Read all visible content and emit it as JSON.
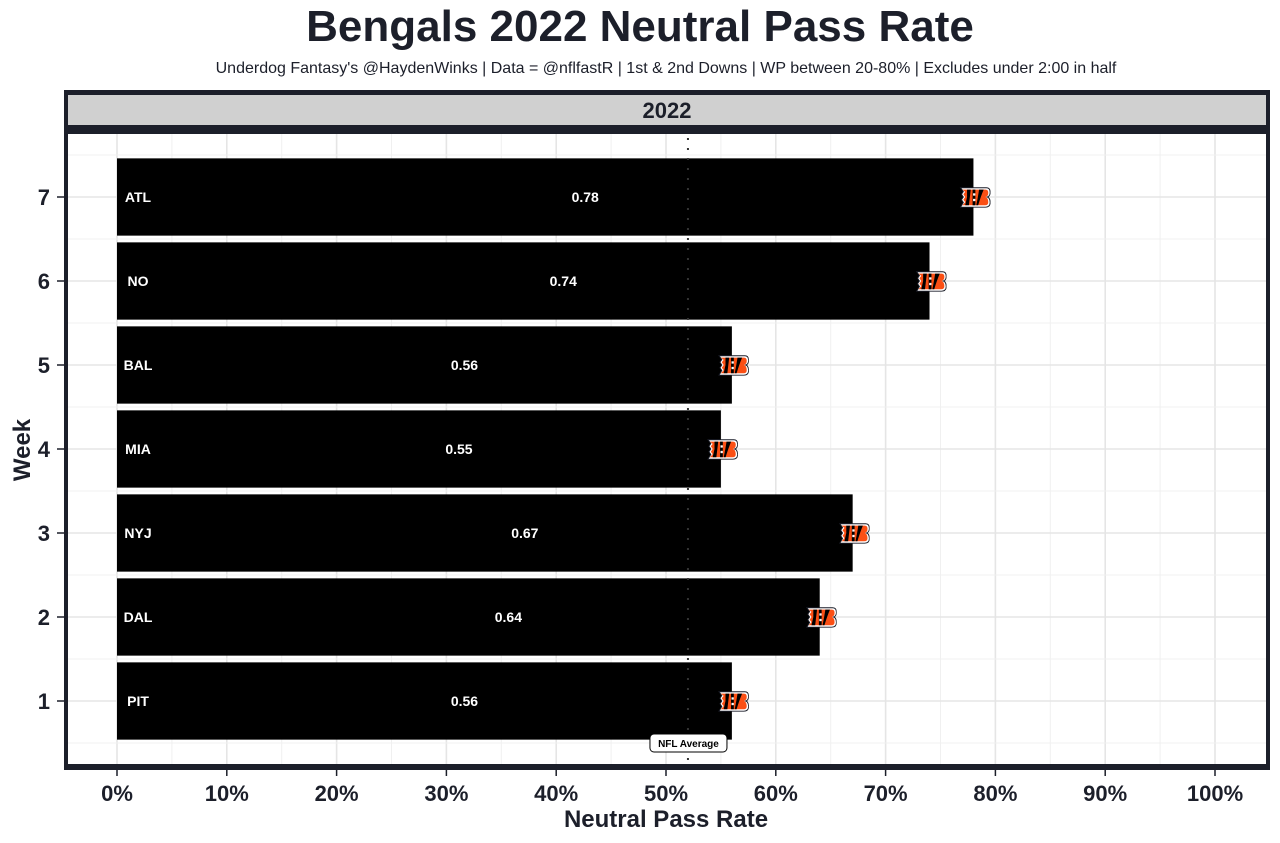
{
  "chart_data": {
    "type": "bar",
    "orientation": "horizontal",
    "title": "Bengals 2022 Neutral Pass Rate",
    "subtitle": "Underdog Fantasy's @HaydenWinks | Data = @nflfastR | 1st & 2nd Downs | WP between 20-80% | Excludes under 2:00 in half",
    "facet_label": "2022",
    "xlabel": "Neutral Pass Rate",
    "ylabel": "Week",
    "xlim": [
      0,
      1
    ],
    "ylim": [
      0.5,
      7.5
    ],
    "x_ticks": [
      0,
      0.1,
      0.2,
      0.3,
      0.4,
      0.5,
      0.6,
      0.7,
      0.8,
      0.9,
      1.0
    ],
    "x_tick_labels": [
      "0%",
      "10%",
      "20%",
      "30%",
      "40%",
      "50%",
      "60%",
      "70%",
      "80%",
      "90%",
      "100%"
    ],
    "y_ticks": [
      1,
      2,
      3,
      4,
      5,
      6,
      7
    ],
    "y_tick_labels": [
      "1",
      "2",
      "3",
      "4",
      "5",
      "6",
      "7"
    ],
    "grid": true,
    "bar_color": "#000000",
    "categories": [
      "1",
      "2",
      "3",
      "4",
      "5",
      "6",
      "7"
    ],
    "opponents": [
      "PIT",
      "DAL",
      "NYJ",
      "MIA",
      "BAL",
      "NO",
      "ATL"
    ],
    "values": [
      0.56,
      0.64,
      0.67,
      0.55,
      0.56,
      0.74,
      0.78
    ],
    "value_labels": [
      "0.56",
      "0.64",
      "0.67",
      "0.55",
      "0.56",
      "0.74",
      "0.78"
    ],
    "reference_line": {
      "value": 0.52,
      "label": "NFL Average",
      "style": "dotted"
    },
    "point_marker": "bengals-logo-icon",
    "logo_colors": {
      "orange": "#fb4f14",
      "black": "#000000",
      "white": "#ffffff"
    }
  },
  "colors": {
    "panel_border": "#1c1f2a",
    "strip_fill": "#d0d0d0",
    "grid_major": "#e5e5e5",
    "grid_minor": "#f0f0f0",
    "text": "#1c1f2a"
  }
}
